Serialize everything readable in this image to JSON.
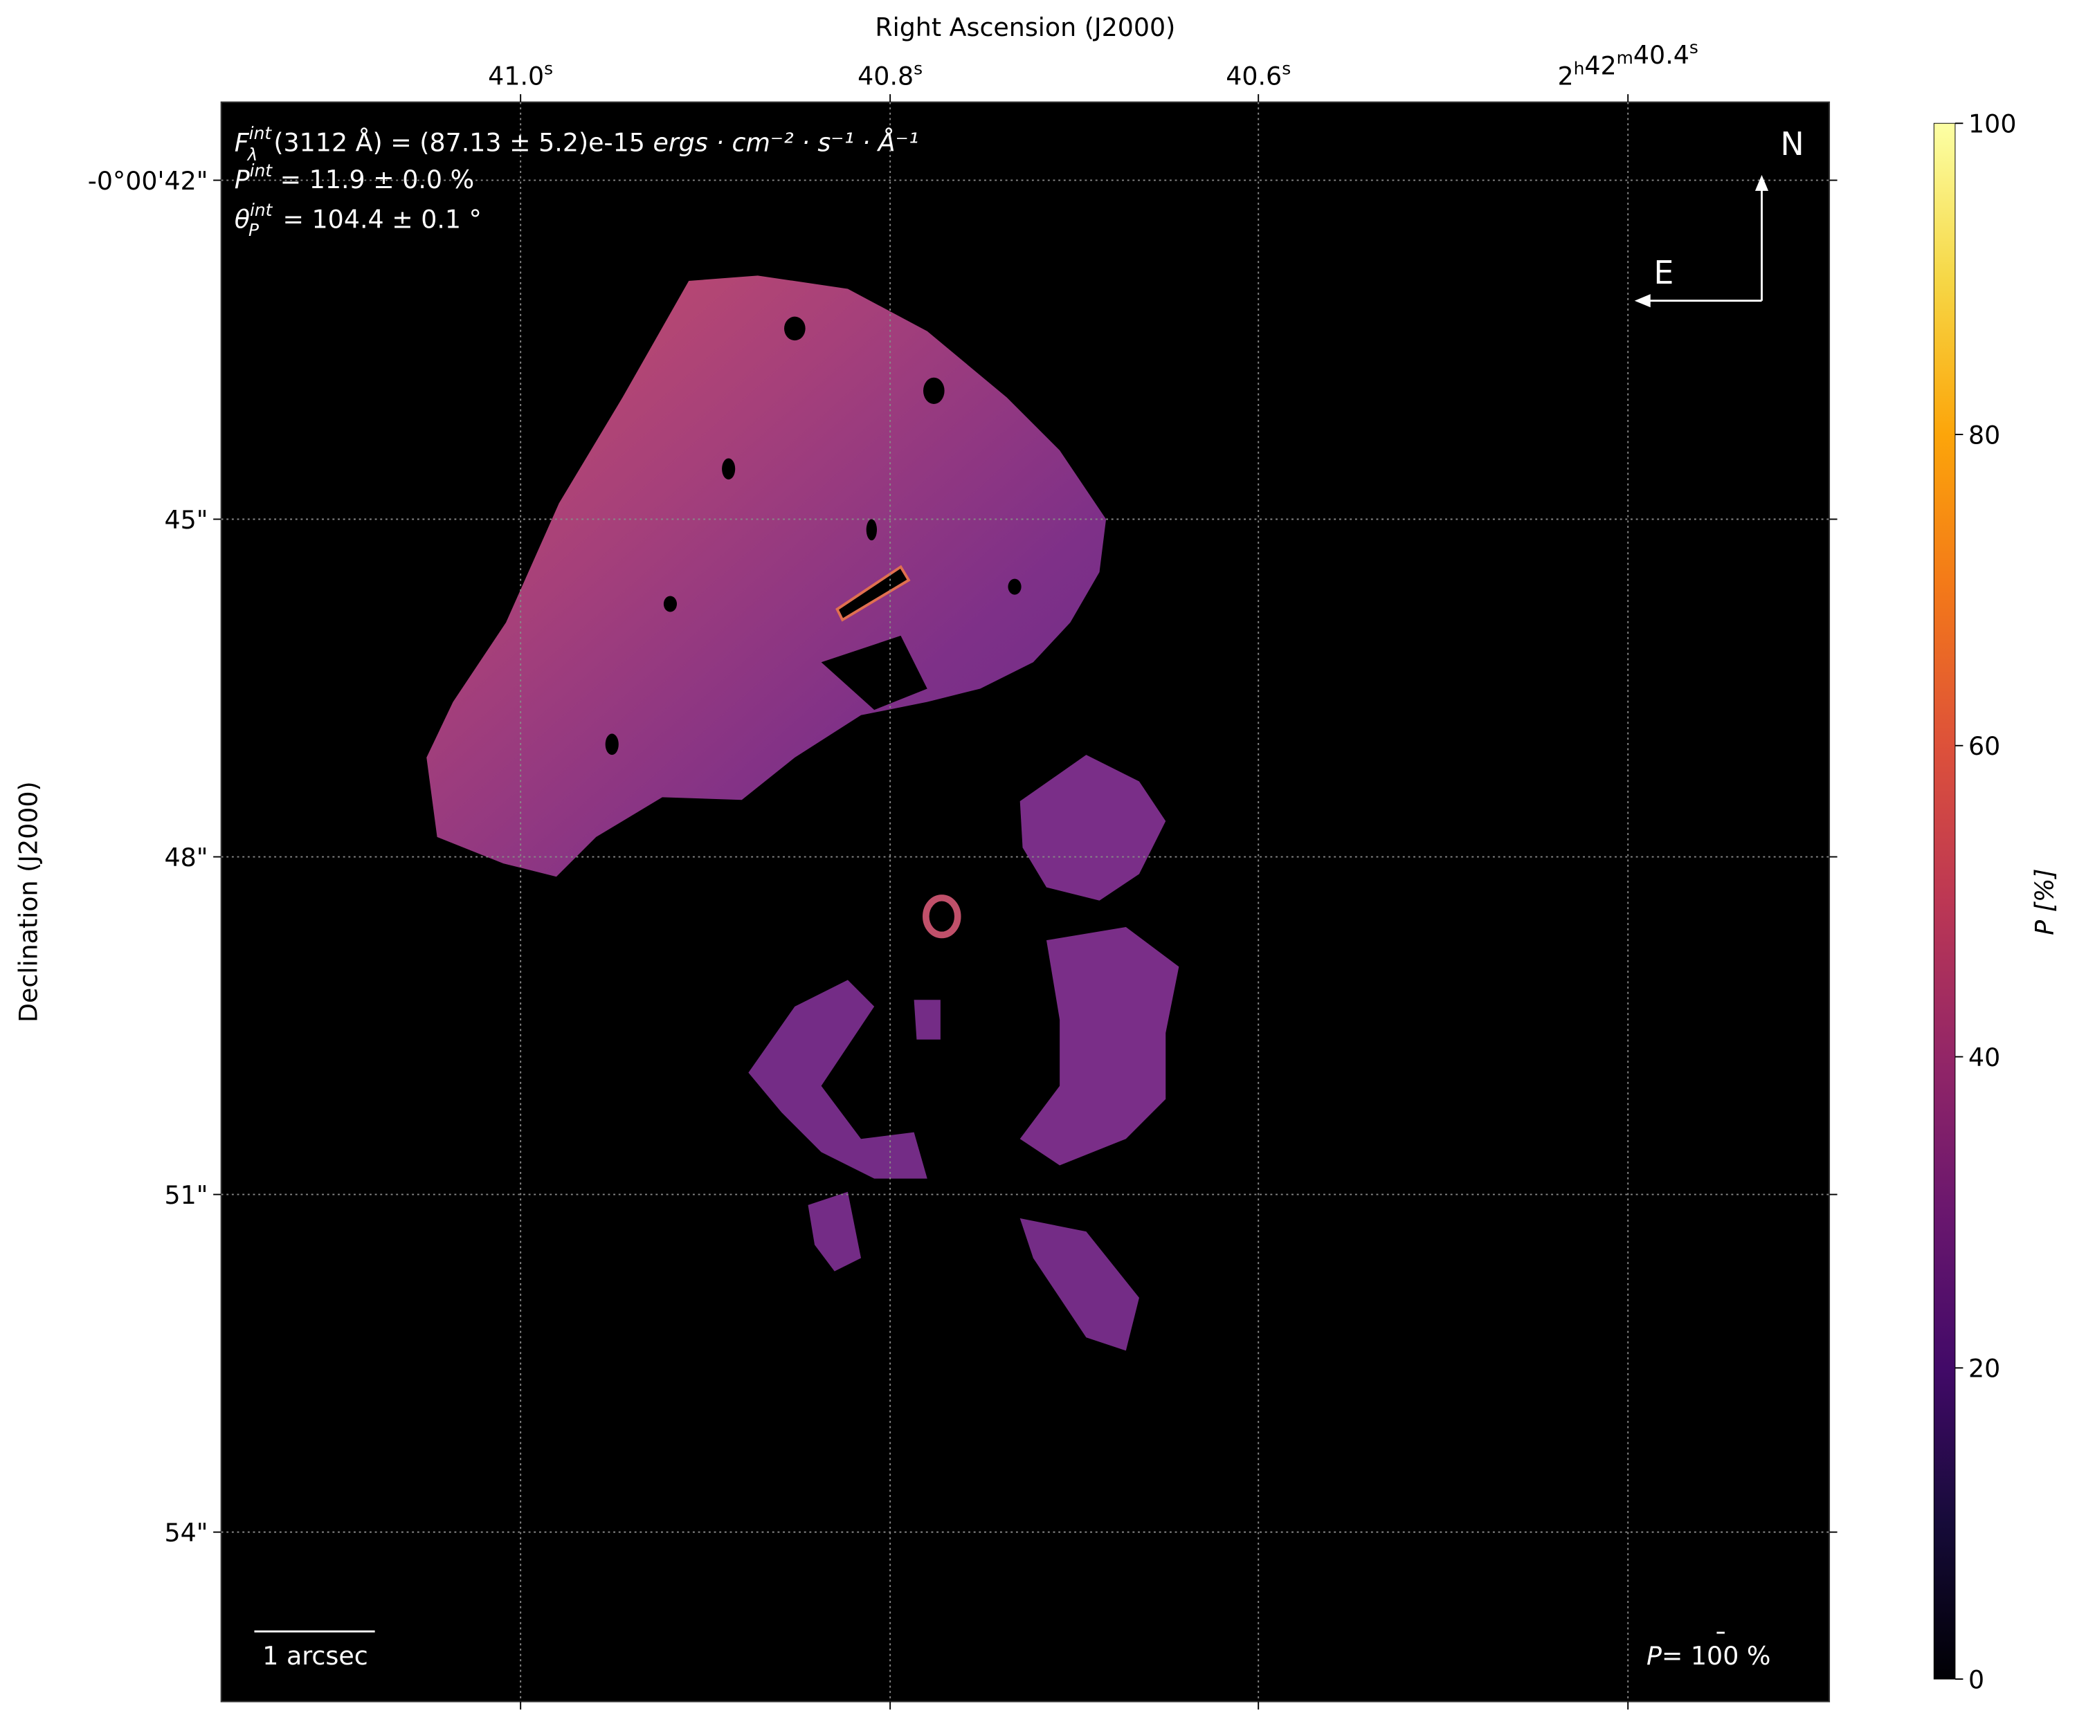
{
  "chart_data": {
    "type": "heatmap",
    "title": "",
    "xlabel": "Right Ascension (J2000)",
    "ylabel": "Declination (J2000)",
    "x_ticks": [
      {
        "label": "41.0",
        "sup": "s",
        "pre": "",
        "pre_sup": ""
      },
      {
        "label": "40.8",
        "sup": "s",
        "pre": "",
        "pre_sup": ""
      },
      {
        "label": "40.6",
        "sup": "s",
        "pre": "",
        "pre_sup": ""
      },
      {
        "label": "40.4",
        "sup": "s",
        "pre": "2",
        "pre_sup": "h",
        "mid": "42",
        "mid_sup": "m"
      }
    ],
    "y_ticks": [
      "-0°00'42\"",
      "45\"",
      "48\"",
      "51\"",
      "54\""
    ],
    "grid": true,
    "colormap": "inferno",
    "colorbar": {
      "label": "P [%]",
      "range": [
        0,
        100
      ],
      "ticks": [
        "0",
        "20",
        "40",
        "60",
        "80",
        "100"
      ]
    },
    "annotations": {
      "flux": {
        "sym": "F",
        "sup": "int",
        "sub": "λ",
        "text": "(3112 Å) = (87.13 ± 5.2)e-15 ",
        "units": "ergs · cm⁻² · s⁻¹ · Å⁻¹"
      },
      "pol": {
        "sym": "P",
        "sup": "int",
        "text": " = 11.9 ± 0.0 %"
      },
      "angle": {
        "sym": "θ",
        "sup": "int",
        "sub": "P",
        "text": " = 104.4 ± 0.1 °"
      },
      "scalebar": "1 arcsec",
      "vector_scale": {
        "sym": "P",
        "text": "= 100 %"
      },
      "north": "N",
      "east": "E"
    },
    "background_color": "#000000"
  }
}
